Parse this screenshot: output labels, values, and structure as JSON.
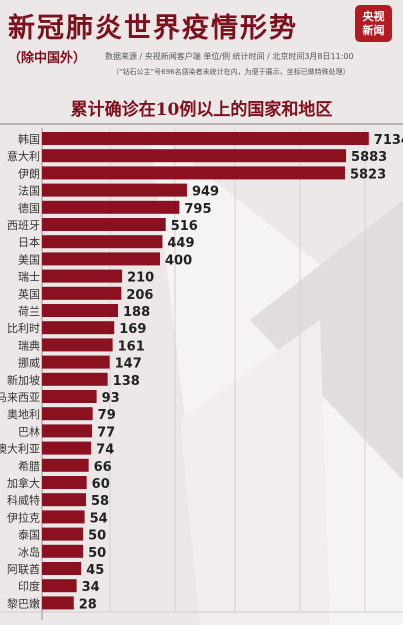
{
  "header": {
    "title": "新冠肺炎世界疫情形势",
    "subtitle": "（除中国外）",
    "source": "数据来源 / 央视新闻客户端  单位/例  统计时间 / 北京时间3月8日11:00",
    "note": "（“钻石公主”号696名感染者未统计在内，为便于展示，坐标已做特殊处理）",
    "logo_line1": "央视",
    "logo_line2": "新闻"
  },
  "colors": {
    "bar": "#8b1020",
    "text": "#333333",
    "title": "#7e0f1c"
  },
  "chart_data": {
    "type": "bar",
    "orientation": "horizontal",
    "title": "累计确诊在10例以上的国家和地区",
    "categories": [
      "韩国",
      "意大利",
      "伊朗",
      "法国",
      "德国",
      "西班牙",
      "日本",
      "美国",
      "瑞士",
      "英国",
      "荷兰",
      "比利时",
      "瑞典",
      "挪威",
      "新加坡",
      "马来西亚",
      "奥地利",
      "巴林",
      "澳大利亚",
      "希腊",
      "加拿大",
      "科威特",
      "伊拉克",
      "泰国",
      "冰岛",
      "阿联酋",
      "印度",
      "黎巴嫩"
    ],
    "values": [
      7134,
      5883,
      5823,
      949,
      795,
      516,
      449,
      400,
      210,
      206,
      188,
      169,
      161,
      147,
      138,
      93,
      79,
      77,
      74,
      66,
      60,
      58,
      54,
      50,
      50,
      45,
      34,
      28
    ],
    "scale": "non-linear (specially adjusted)"
  }
}
